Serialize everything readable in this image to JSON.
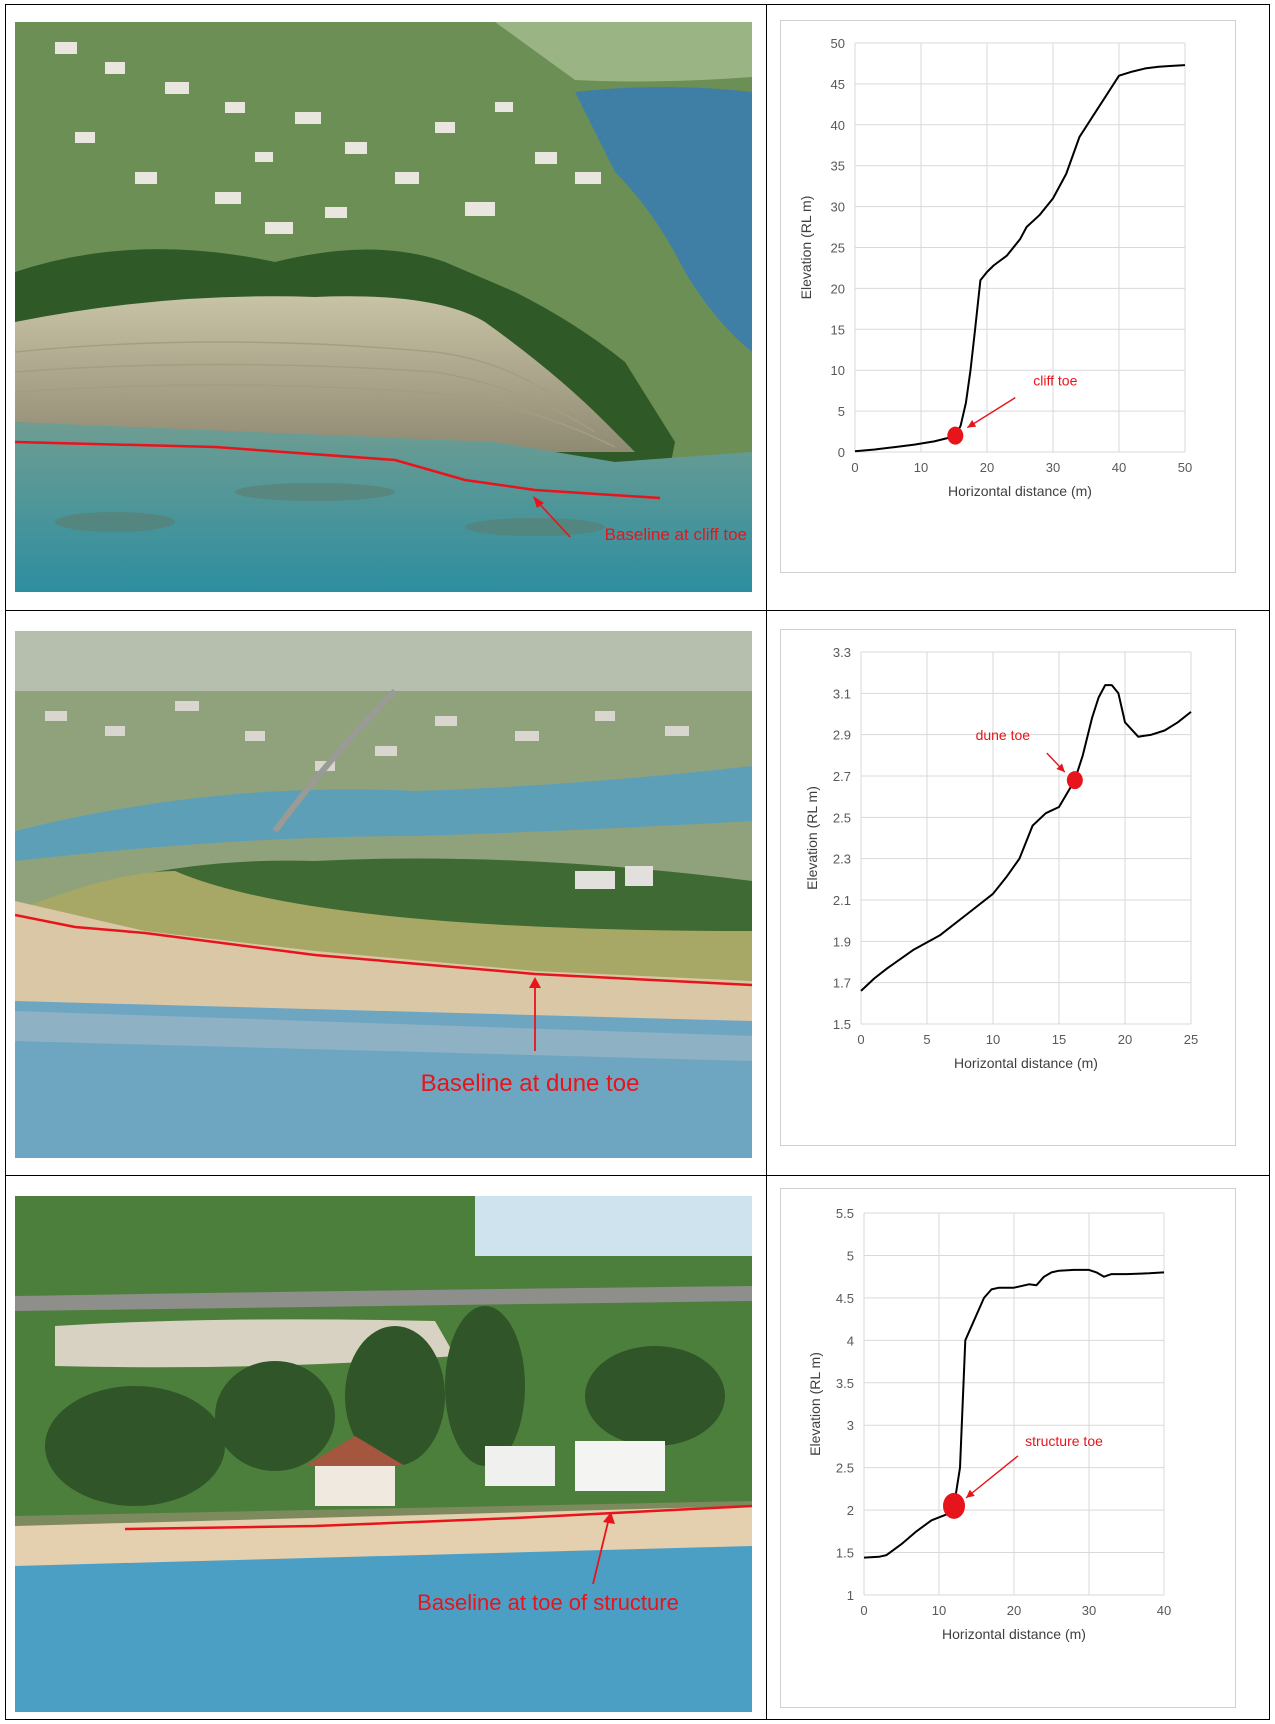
{
  "photos": [
    {
      "annotation": "Baseline at cliff toe"
    },
    {
      "annotation": "Baseline at dune toe"
    },
    {
      "annotation": "Baseline at toe of structure"
    }
  ],
  "colors": {
    "annotation_red": "#e8141b",
    "profile_line": "#000000",
    "grid": "#d9d9d9"
  },
  "chart_data": [
    {
      "type": "line",
      "xlabel": "Horizontal distance (m)",
      "ylabel": "Elevation (RL m)",
      "xlim": [
        0,
        50
      ],
      "ylim": [
        0,
        50
      ],
      "xticks": [
        0,
        10,
        20,
        30,
        40,
        50
      ],
      "yticks": [
        0,
        5,
        10,
        15,
        20,
        25,
        30,
        35,
        40,
        45,
        50
      ],
      "grid": true,
      "series": [
        {
          "x": [
            0,
            3,
            6,
            9,
            12,
            14,
            15.2,
            16,
            16.8,
            17.5,
            18.2,
            19,
            20,
            21,
            23,
            25,
            26,
            28,
            30,
            32,
            34,
            36,
            38,
            40,
            42,
            44,
            46,
            48,
            50
          ],
          "y": [
            0.1,
            0.3,
            0.6,
            0.9,
            1.3,
            1.7,
            2.0,
            3.2,
            6,
            10,
            15,
            21,
            22,
            22.8,
            24,
            26,
            27.5,
            29,
            31,
            34,
            38.5,
            41,
            43.5,
            46,
            46.5,
            46.9,
            47.1,
            47.2,
            47.3
          ]
        }
      ],
      "marker": {
        "x": 15.2,
        "y": 2.0,
        "label": "cliff toe"
      }
    },
    {
      "type": "line",
      "xlabel": "Horizontal distance (m)",
      "ylabel": "Elevation (RL m)",
      "xlim": [
        0,
        25
      ],
      "ylim": [
        1.5,
        3.3
      ],
      "xticks": [
        0,
        5,
        10,
        15,
        20,
        25
      ],
      "yticks": [
        1.5,
        1.7,
        1.9,
        2.1,
        2.3,
        2.5,
        2.7,
        2.9,
        3.1,
        3.3
      ],
      "grid": true,
      "series": [
        {
          "x": [
            0,
            1,
            2,
            4,
            6,
            8,
            10,
            11,
            12,
            13,
            14,
            15,
            16.2,
            16.8,
            17.5,
            18,
            18.5,
            19,
            19.5,
            20,
            21,
            22,
            23,
            24,
            25
          ],
          "y": [
            1.66,
            1.72,
            1.77,
            1.86,
            1.93,
            2.03,
            2.13,
            2.21,
            2.3,
            2.46,
            2.52,
            2.55,
            2.68,
            2.8,
            2.98,
            3.08,
            3.14,
            3.14,
            3.1,
            2.96,
            2.89,
            2.9,
            2.92,
            2.96,
            3.01
          ]
        }
      ],
      "marker": {
        "x": 16.2,
        "y": 2.68,
        "label": "dune toe"
      }
    },
    {
      "type": "line",
      "xlabel": "Horizontal distance (m)",
      "ylabel": "Elevation (RL m)",
      "xlim": [
        0,
        40
      ],
      "ylim": [
        1,
        5.5
      ],
      "xticks": [
        0,
        10,
        20,
        30,
        40
      ],
      "yticks": [
        1,
        1.5,
        2,
        2.5,
        3,
        3.5,
        4,
        4.5,
        5,
        5.5
      ],
      "grid": true,
      "series": [
        {
          "x": [
            0,
            2,
            3,
            5,
            7,
            9,
            11,
            12,
            12.8,
            13.5,
            15,
            16,
            17,
            18,
            20,
            22,
            23,
            24,
            25,
            26,
            28,
            30,
            31,
            32,
            33,
            35,
            38,
            40
          ],
          "y": [
            1.44,
            1.45,
            1.47,
            1.6,
            1.75,
            1.88,
            1.95,
            2.05,
            2.5,
            4.0,
            4.3,
            4.5,
            4.6,
            4.62,
            4.62,
            4.66,
            4.65,
            4.75,
            4.8,
            4.82,
            4.83,
            4.83,
            4.8,
            4.75,
            4.78,
            4.78,
            4.79,
            4.8
          ]
        }
      ],
      "marker": {
        "x": 12,
        "y": 2.05,
        "label": "structure toe"
      }
    }
  ]
}
